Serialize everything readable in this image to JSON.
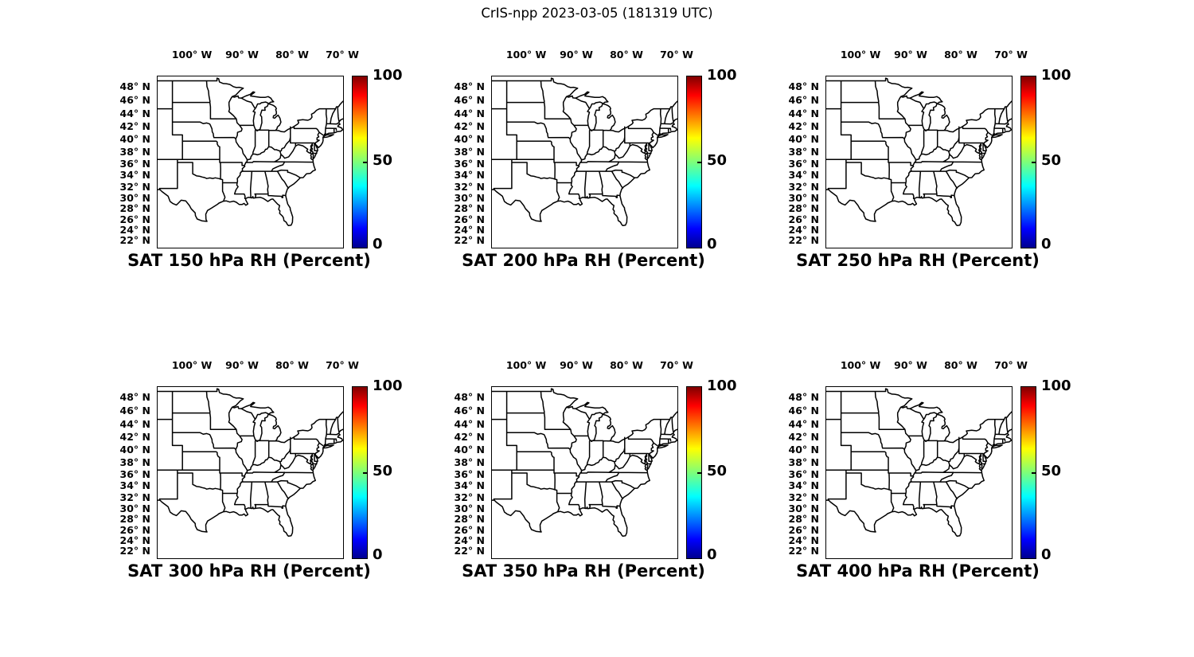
{
  "figure": {
    "title": "CrIS-npp 2023-03-05 (181319 UTC)"
  },
  "panels": [
    {
      "title": "SAT 150 hPa RH (Percent)",
      "pressure_level_hPa": 150
    },
    {
      "title": "SAT 200 hPa RH (Percent)",
      "pressure_level_hPa": 200
    },
    {
      "title": "SAT 250 hPa RH (Percent)",
      "pressure_level_hPa": 250
    },
    {
      "title": "SAT 300 hPa RH (Percent)",
      "pressure_level_hPa": 300
    },
    {
      "title": "SAT 350 hPa RH (Percent)",
      "pressure_level_hPa": 350
    },
    {
      "title": "SAT 400 hPa RH (Percent)",
      "pressure_level_hPa": 400
    }
  ],
  "axes": {
    "lon_tick_labels": [
      "100° W",
      "90° W",
      "80° W",
      "70° W"
    ],
    "lon_tick_values": [
      -100,
      -90,
      -80,
      -70
    ],
    "lat_tick_labels": [
      "48° N",
      "46° N",
      "44° N",
      "42° N",
      "40° N",
      "38° N",
      "36° N",
      "34° N",
      "32° N",
      "30° N",
      "28° N",
      "26° N",
      "24° N",
      "22° N"
    ],
    "lat_tick_values": [
      48,
      46,
      44,
      42,
      40,
      38,
      36,
      34,
      32,
      30,
      28,
      26,
      24,
      22
    ]
  },
  "colorbar": {
    "tick_labels": [
      "100",
      "50",
      "0"
    ],
    "tick_values": [
      100,
      50,
      0
    ],
    "min": 0,
    "max": 100,
    "colormap": "jet"
  },
  "colors": {
    "line": "#000000",
    "background": "#FFFFFF",
    "jet_stops": [
      [
        "0%",
        "#00008F"
      ],
      [
        "11%",
        "#0000FF"
      ],
      [
        "36%",
        "#00FFFF"
      ],
      [
        "50%",
        "#7DFF7A"
      ],
      [
        "64%",
        "#FFFF00"
      ],
      [
        "89%",
        "#FF0000"
      ],
      [
        "100%",
        "#800000"
      ]
    ]
  },
  "chart_data": {
    "type": "map",
    "title": "CrIS-npp 2023-03-05 (181319 UTC)",
    "layout": "2 rows x 3 columns",
    "projection": "mercator",
    "basemap": "US state boundaries",
    "lon_range": [
      -107,
      -70
    ],
    "lat_range": [
      21,
      49.6
    ],
    "lon_ticks_deg_west": [
      100,
      90,
      80,
      70
    ],
    "lat_ticks_deg_north": [
      48,
      46,
      44,
      42,
      40,
      38,
      36,
      34,
      32,
      30,
      28,
      26,
      24,
      22
    ],
    "colorbar": {
      "min": 0,
      "max": 100,
      "ticks": [
        0,
        50,
        100
      ],
      "colormap": "jet",
      "orientation": "vertical"
    },
    "subplots": [
      {
        "title": "SAT 150 hPa RH (Percent)",
        "variable": "RH",
        "units": "Percent",
        "pressure_level_hPa": 150,
        "plotted_points": []
      },
      {
        "title": "SAT 200 hPa RH (Percent)",
        "variable": "RH",
        "units": "Percent",
        "pressure_level_hPa": 200,
        "plotted_points": []
      },
      {
        "title": "SAT 250 hPa RH (Percent)",
        "variable": "RH",
        "units": "Percent",
        "pressure_level_hPa": 250,
        "plotted_points": []
      },
      {
        "title": "SAT 300 hPa RH (Percent)",
        "variable": "RH",
        "units": "Percent",
        "pressure_level_hPa": 300,
        "plotted_points": []
      },
      {
        "title": "SAT 350 hPa RH (Percent)",
        "variable": "RH",
        "units": "Percent",
        "pressure_level_hPa": 350,
        "plotted_points": []
      },
      {
        "title": "SAT 400 hPa RH (Percent)",
        "variable": "RH",
        "units": "Percent",
        "pressure_level_hPa": 400,
        "plotted_points": []
      }
    ]
  }
}
